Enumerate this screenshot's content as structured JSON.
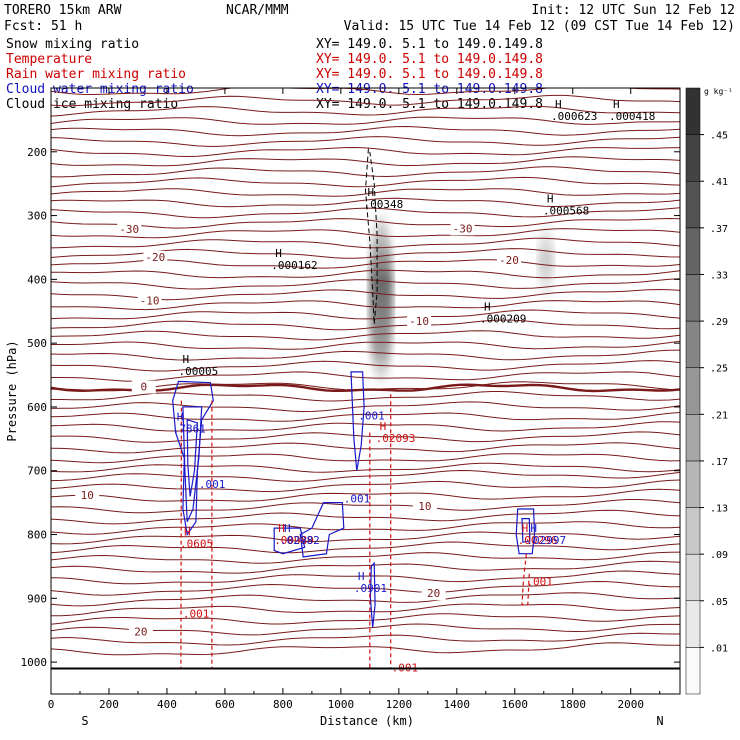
{
  "header": {
    "model_line": "TORERO  15km ARW",
    "org": "NCAR/MMM",
    "init": "Init: 12 UTC Sun 12 Feb 12",
    "fcst": "Fcst:    51 h",
    "valid": "Valid: 15 UTC Tue 14 Feb 12 (09 CST Tue 14 Feb 12)"
  },
  "fields": [
    {
      "name": "Snow mixing ratio",
      "xy": "",
      "color": "#000000"
    },
    {
      "name": "Temperature",
      "xy": "XY= 149.0.  5.1 to 149.0.149.8",
      "color": "#cc0000"
    },
    {
      "name": "Rain water mixing ratio",
      "xy": "XY= 149.0.  5.1 to 149.0.149.8",
      "color": "#cc0000"
    },
    {
      "name": "Cloud water mixing ratio",
      "xy": "XY= 149.0.  5.1 to 149.0.149.8",
      "color": "#1010c0"
    },
    {
      "name": "Cloud ice mixing ratio",
      "xy": "XY= 149.0.  5.1 to 149.0.149.8",
      "color": "#000000"
    }
  ],
  "first_xy": "XY= 149.0.  5.1 to 149.0.149.8",
  "colors": {
    "temperature": "#7a1a1a",
    "rain": "#d01010",
    "cloud_water": "#1818c8",
    "ice": "#000000"
  },
  "chart_data": {
    "type": "contour",
    "xlabel": "Distance (km)",
    "ylabel": "Pressure (hPa)",
    "xlim": [
      0,
      2170
    ],
    "ylim": [
      1050,
      100
    ],
    "x_ticks": [
      0,
      200,
      400,
      600,
      800,
      1000,
      1200,
      1400,
      1600,
      1800,
      2000
    ],
    "y_ticks": [
      200,
      300,
      400,
      500,
      600,
      700,
      800,
      900,
      1000
    ],
    "left_end_label": "S",
    "right_end_label": "N",
    "surface_pressure": 1010,
    "colorbar": {
      "unit": "g kg⁻¹",
      "levels": [
        ".01",
        ".05",
        ".09",
        ".13",
        ".17",
        ".21",
        ".25",
        ".29",
        ".33",
        ".37",
        ".41",
        ".45"
      ]
    },
    "temperature_contours": [
      {
        "label": "-30",
        "p": 321
      },
      {
        "label": "-30",
        "p": 320
      },
      {
        "label": "-20",
        "p": 365
      },
      {
        "label": "-20",
        "p": 370
      },
      {
        "label": "-10",
        "p": 433
      },
      {
        "label": "-10",
        "p": 465
      },
      {
        "label": "0",
        "p": 568
      },
      {
        "label": "10",
        "p": 738
      },
      {
        "label": "10",
        "p": 755
      },
      {
        "label": "20",
        "p": 952
      },
      {
        "label": "20",
        "p": 892
      }
    ],
    "extrema": [
      {
        "mark": "H",
        "value": ".000623",
        "x": 1725,
        "p": 150,
        "field": "ice"
      },
      {
        "mark": "H",
        "value": ".000418",
        "x": 1925,
        "p": 150,
        "field": "ice"
      },
      {
        "mark": "H",
        "value": ".00348",
        "x": 1078,
        "p": 288,
        "field": "ice"
      },
      {
        "mark": "H",
        "value": ".000568",
        "x": 1697,
        "p": 298,
        "field": "ice"
      },
      {
        "mark": "H",
        "value": ".000162",
        "x": 760,
        "p": 384,
        "field": "ice"
      },
      {
        "mark": "H",
        "value": ".000209",
        "x": 1480,
        "p": 468,
        "field": "ice"
      },
      {
        "mark": "H",
        "value": ".00005",
        "x": 440,
        "p": 550,
        "field": "ice"
      },
      {
        "mark": "H",
        "value": ".7861",
        "x": 420,
        "p": 640,
        "field": "cloud_water"
      },
      {
        "mark": "",
        "value": ".001",
        "x": 510,
        "p": 727,
        "field": "cloud_water"
      },
      {
        "mark": "",
        "value": ".001",
        "x": 1060,
        "p": 620,
        "field": "cloud_water"
      },
      {
        "mark": "",
        "value": ".001",
        "x": 1010,
        "p": 750,
        "field": "cloud_water"
      },
      {
        "mark": "H",
        "value": ".0901",
        "x": 1045,
        "p": 890,
        "field": "cloud_water"
      },
      {
        "mark": "H",
        "value": ".02093",
        "x": 1120,
        "p": 655,
        "field": "rain"
      },
      {
        "mark": "H",
        "value": ".0605",
        "x": 445,
        "p": 820,
        "field": "rain"
      },
      {
        "mark": "",
        "value": ".001",
        "x": 455,
        "p": 930,
        "field": "rain"
      },
      {
        "mark": "H",
        "value": ".00989",
        "x": 770,
        "p": 815,
        "field": "rain"
      },
      {
        "mark": "H",
        "value": ".02982",
        "x": 790,
        "p": 815,
        "field": "cloud_water"
      },
      {
        "mark": "H",
        "value": ".00296",
        "x": 1610,
        "p": 815,
        "field": "rain"
      },
      {
        "mark": "H",
        "value": ".02997",
        "x": 1640,
        "p": 815,
        "field": "cloud_water"
      },
      {
        "mark": "",
        "value": ".001",
        "x": 1640,
        "p": 880,
        "field": "rain"
      },
      {
        "mark": "",
        "value": ".001",
        "x": 1175,
        "p": 1015,
        "field": "rain"
      }
    ]
  }
}
